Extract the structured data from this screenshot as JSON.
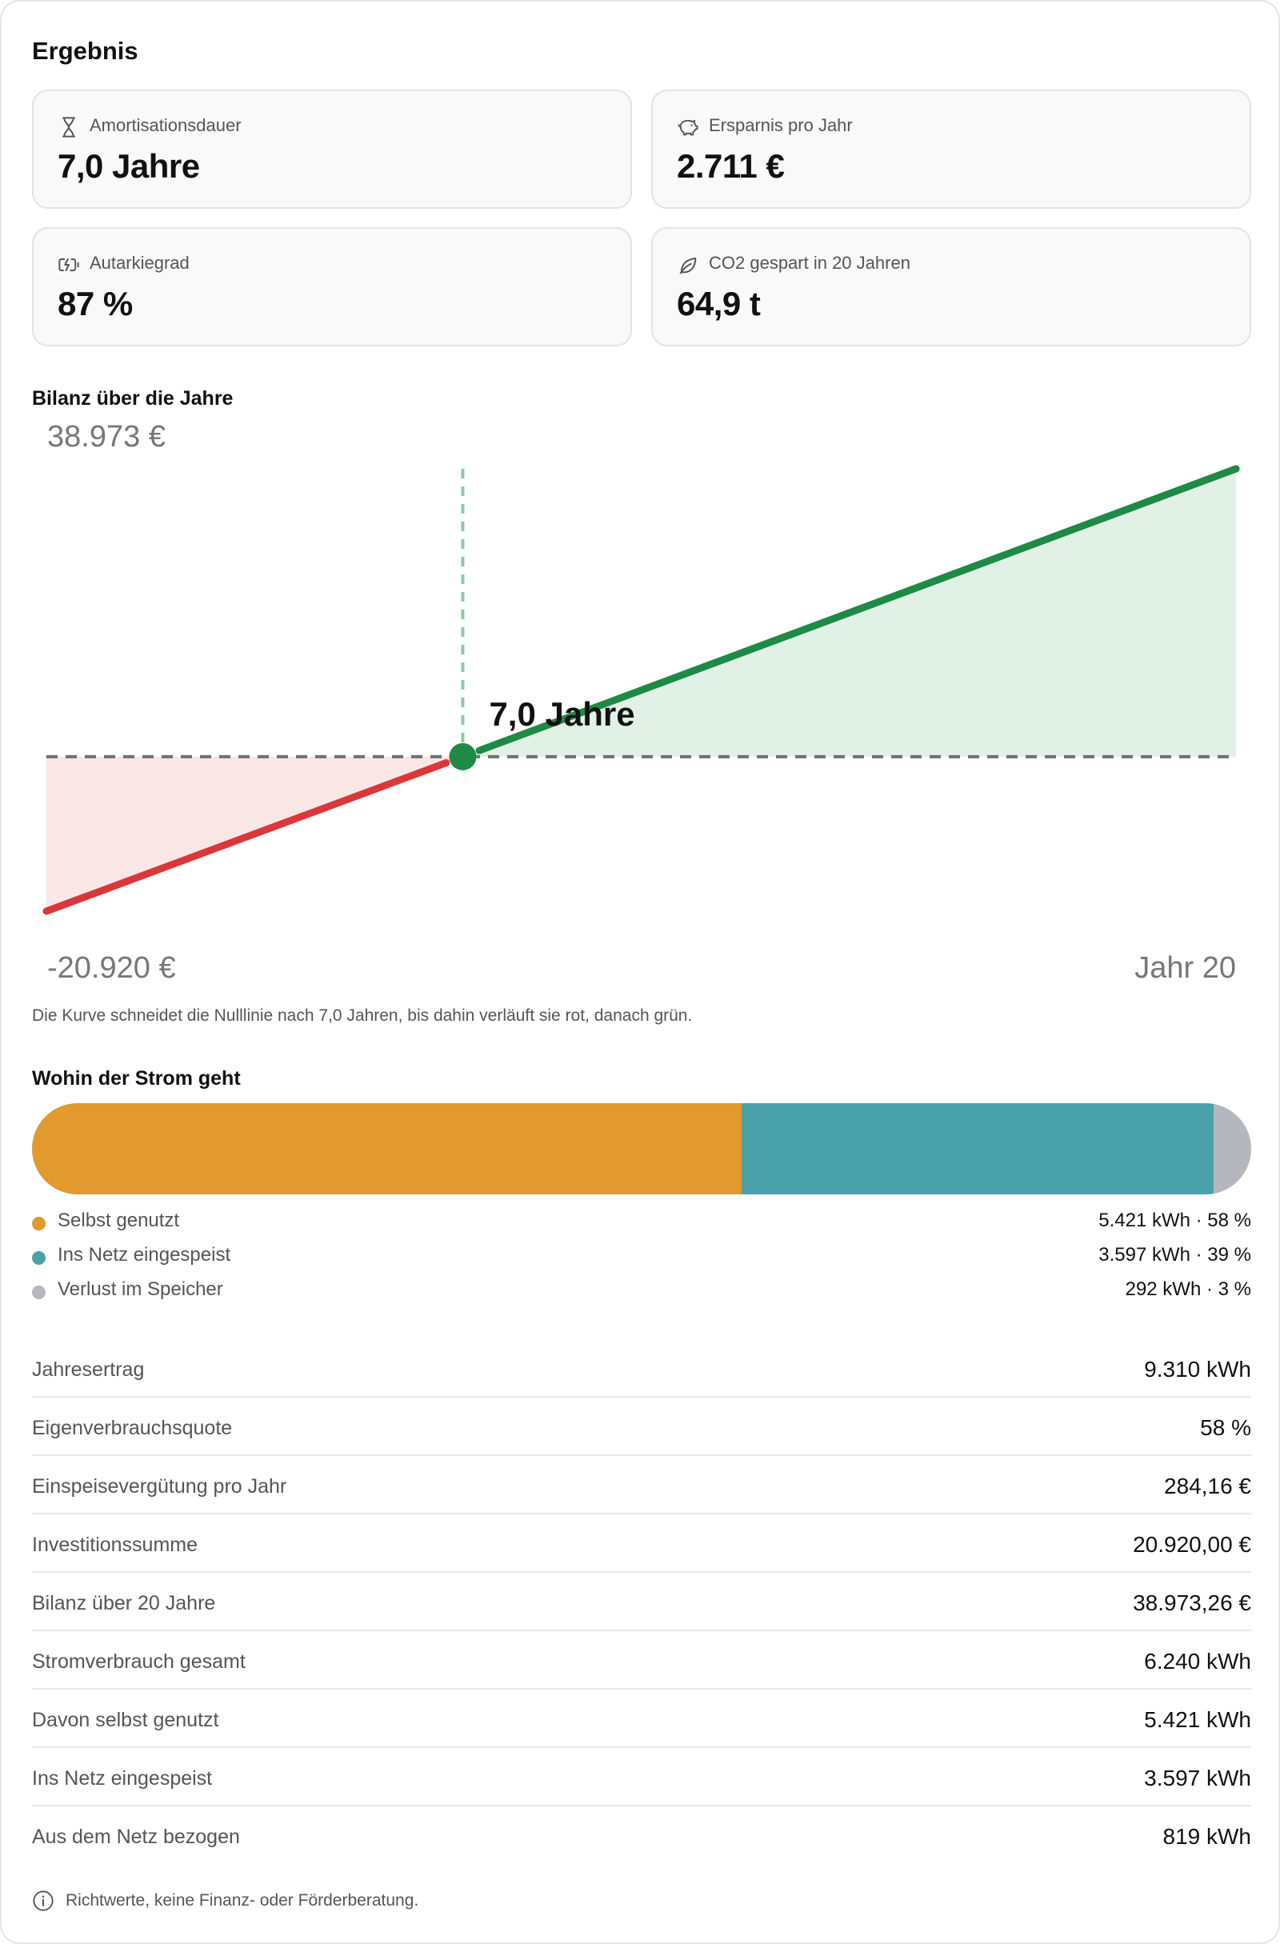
{
  "title": "Ergebnis",
  "cards": [
    {
      "icon": "hourglass-icon",
      "label": "Amortisationsdauer",
      "value": "7,0 Jahre"
    },
    {
      "icon": "piggy-bank-icon",
      "label": "Ersparnis pro Jahr",
      "value": "2.711 €"
    },
    {
      "icon": "battery-charging-icon",
      "label": "Autarkiegrad",
      "value": "87 %"
    },
    {
      "icon": "leaf-icon",
      "label": "CO2 gespart in 20 Jahren",
      "value": "64,9 t"
    }
  ],
  "chart_section": {
    "title": "Bilanz über die Jahre",
    "caption": "Die Kurve schneidet die Nulllinie nach 7,0 Jahren, bis dahin verläuft sie rot, danach grün."
  },
  "chart_data": {
    "type": "line",
    "x": [
      0,
      7,
      20
    ],
    "y": [
      -20920,
      0,
      38973
    ],
    "ylim": [
      -20920,
      38973
    ],
    "xlim": [
      0,
      20
    ],
    "top_label": "38.973 €",
    "bottom_label": "-20.920 €",
    "x_end_label": "Jahr 20",
    "breakeven_label": "7,0 Jahre",
    "breakeven_x": 7,
    "colors": {
      "negative": "#d9373a",
      "positive": "#1e8a45",
      "negative_fill": "#fbe6e6",
      "positive_fill": "#e2f1e5"
    }
  },
  "flow_section": {
    "title": "Wohin der Strom geht",
    "segments": [
      {
        "label": "Selbst genutzt",
        "value": "5.421 kWh · 58 %",
        "fraction": 0.582,
        "color": "#e2992d"
      },
      {
        "label": "Ins Netz eingespeist",
        "value": "3.597 kWh · 39 %",
        "fraction": 0.387,
        "color": "#49a2aa"
      },
      {
        "label": "Verlust im Speicher",
        "value": "292 kWh · 3 %",
        "fraction": 0.031,
        "color": "#b6b6be"
      }
    ]
  },
  "details": [
    {
      "label": "Jahresertrag",
      "value": "9.310 kWh"
    },
    {
      "label": "Eigenverbrauchsquote",
      "value": "58 %"
    },
    {
      "label": "Einspeisevergütung pro Jahr",
      "value": "284,16 €"
    },
    {
      "label": "Investitionssumme",
      "value": "20.920,00 €"
    },
    {
      "label": "Bilanz über 20 Jahre",
      "value": "38.973,26 €"
    },
    {
      "label": "Stromverbrauch gesamt",
      "value": "6.240 kWh"
    },
    {
      "label": "Davon selbst genutzt",
      "value": "5.421 kWh"
    },
    {
      "label": "Ins Netz eingespeist",
      "value": "3.597 kWh"
    },
    {
      "label": "Aus dem Netz bezogen",
      "value": "819 kWh"
    }
  ],
  "footnote": "Richtwerte, keine Finanz- oder Förderberatung."
}
